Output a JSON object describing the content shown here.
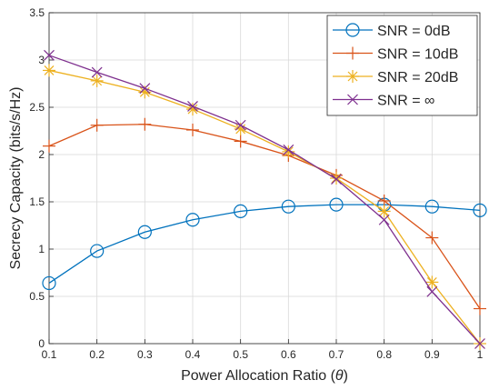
{
  "chart_data": {
    "type": "line",
    "xlabel_prefix": "Power Allocation Ratio (",
    "xlabel_symbol": "θ",
    "xlabel_suffix": ")",
    "ylabel": "Secrecy Capacity (bits/s/Hz)",
    "xlim": [
      0.1,
      1
    ],
    "ylim": [
      0,
      3.5
    ],
    "xticks": [
      "0.1",
      "0.2",
      "0.3",
      "0.4",
      "0.5",
      "0.6",
      "0.7",
      "0.8",
      "0.9",
      "1"
    ],
    "yticks": [
      "0",
      "0.5",
      "1",
      "1.5",
      "2",
      "2.5",
      "3",
      "3.5"
    ],
    "grid": true,
    "legend_position": "top-right",
    "x": [
      0.1,
      0.2,
      0.3,
      0.4,
      0.5,
      0.6,
      0.7,
      0.8,
      0.9,
      1.0
    ],
    "series": [
      {
        "name": "SNR = 0dB",
        "color": "#0072BD",
        "marker": "circle",
        "values": [
          0.64,
          0.98,
          1.18,
          1.31,
          1.4,
          1.45,
          1.47,
          1.47,
          1.45,
          1.41
        ]
      },
      {
        "name": "SNR = 10dB",
        "color": "#D95319",
        "marker": "plus",
        "values": [
          2.09,
          2.31,
          2.32,
          2.26,
          2.14,
          1.99,
          1.78,
          1.51,
          1.12,
          0.37
        ]
      },
      {
        "name": "SNR = 20dB",
        "color": "#EDB120",
        "marker": "asterisk",
        "values": [
          2.89,
          2.78,
          2.66,
          2.48,
          2.27,
          2.03,
          1.75,
          1.4,
          0.65,
          0.0
        ]
      },
      {
        "name": "SNR =  ∞",
        "color": "#7E2F8E",
        "marker": "cross",
        "values": [
          3.05,
          2.87,
          2.7,
          2.51,
          2.31,
          2.05,
          1.74,
          1.31,
          0.55,
          0.0
        ]
      }
    ]
  }
}
